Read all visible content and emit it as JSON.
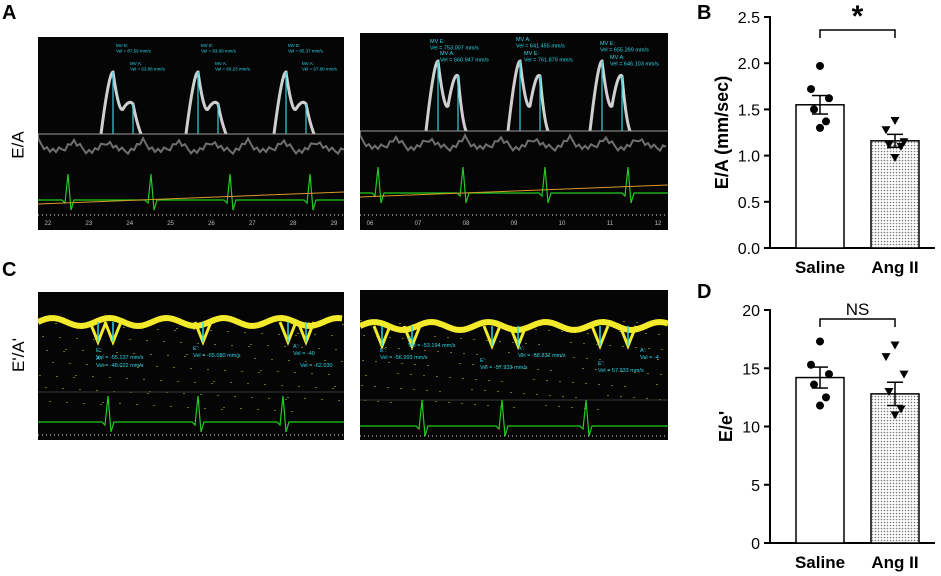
{
  "panels": {
    "a": {
      "letter": "A",
      "row_label": "E/A",
      "left_measure_labels": [
        {
          "l1": "MV E:",
          "l2": "Vel = 87.59 mm/s"
        },
        {
          "l1": "MV A:",
          "l2": "Vel = 63.88 mm/s"
        },
        {
          "l1": "MV E:",
          "l2": "Vel = 83.69 mm/s"
        },
        {
          "l1": "MV A:",
          "l2": "Vel = 60.23 mm/s"
        },
        {
          "l1": "MV E:",
          "l2": "Vel = 85.37 mm/s"
        },
        {
          "l1": "MV A:",
          "l2": "Vel = 67.80 mm/s"
        }
      ],
      "right_measure_labels": [
        {
          "l1": "MV E:",
          "l2": "Vel = 753.007 mm/s"
        },
        {
          "l1": "MV A:",
          "l2": "Vel = 641.455 mm/s"
        },
        {
          "l1": "MV E:",
          "l2": "Vel = 655.399 mm/s"
        },
        {
          "l1": "MV A:",
          "l2": "Vel = 660.947 mm/s"
        },
        {
          "l1": "MV E:",
          "l2": "Vel = 761.879 mm/s"
        },
        {
          "l1": "MV A:",
          "l2": "Vel = 646.103 mm/s"
        }
      ],
      "left_time_ticks": [
        "22",
        "23",
        "24",
        "25",
        "26",
        "27",
        "28",
        "29"
      ],
      "right_time_ticks": [
        "06",
        "07",
        "08",
        "09",
        "10",
        "11",
        "12"
      ]
    },
    "c": {
      "letter": "C",
      "row_label": "E'/A'",
      "left_measure_labels": [
        {
          "l1": "E':",
          "l2": "Vel = -55.137 mm/s"
        },
        {
          "l1": "A':",
          "l2": "Vel = -48.022 mm/s"
        },
        {
          "l1": "E':",
          "l2": "Vel = -65.080 mm/s"
        },
        {
          "l1": "A':",
          "l2": "Vel = -40"
        },
        {
          "l1": "",
          "l2": "Vel = -62.030"
        }
      ],
      "right_measure_labels": [
        {
          "l1": "A':",
          "l2": "Vel = -53.194 mm/s"
        },
        {
          "l1": "E':",
          "l2": "Vel = -56.993 mm/s"
        },
        {
          "l1": "A':",
          "l2": "Vel = -58.832 mm/s"
        },
        {
          "l1": "E':",
          "l2": "Vel = -57.933 mm/s"
        },
        {
          "l1": "E':",
          "l2": "Vel = 57.933 mm/s"
        },
        {
          "l1": "A':",
          "l2": "Vel = -4"
        }
      ]
    },
    "b": {
      "letter": "B"
    },
    "d": {
      "letter": "D"
    }
  },
  "colors": {
    "saline_fill": "#ffffff",
    "angii_fill": "#dcdcdc",
    "axis": "#000000",
    "doppler_gray": "#cfcfcf",
    "doppler_yellow": "#f2ea2a",
    "ecg_green": "#1fcf1f",
    "cursor_cyan": "#2bd6e6",
    "baseline_orange": "#d89a2a"
  },
  "chart_data": [
    {
      "id": "B",
      "type": "bar",
      "categories": [
        "Saline",
        "Ang II"
      ],
      "values": [
        1.55,
        1.16
      ],
      "sem": [
        0.1,
        0.07
      ],
      "points": [
        [
          1.97,
          1.72,
          1.62,
          1.5,
          1.37,
          1.3
        ],
        [
          1.38,
          1.28,
          1.15,
          1.12,
          1.1,
          0.98
        ]
      ],
      "point_markers": [
        "circle",
        "triangle-down"
      ],
      "ylabel": "E/A (mm/sec)",
      "ylim": [
        0,
        2.5
      ],
      "yticks": [
        "0.0",
        "0.5",
        "1.0",
        "1.5",
        "2.0",
        "2.5"
      ],
      "ytick_values": [
        0,
        0.5,
        1.0,
        1.5,
        2.0,
        2.5
      ],
      "annotation": "*",
      "grid": false
    },
    {
      "id": "D",
      "type": "bar",
      "categories": [
        "Saline",
        "Ang II"
      ],
      "values": [
        14.2,
        12.8
      ],
      "sem": [
        0.9,
        1.0
      ],
      "points": [
        [
          17.3,
          15.3,
          14.5,
          13.6,
          12.5,
          11.8
        ],
        [
          17.0,
          16.0,
          14.5,
          13.0,
          11.5,
          11.0
        ]
      ],
      "point_markers": [
        "circle",
        "triangle-down"
      ],
      "ylabel": "E/e'",
      "ylim": [
        0,
        20
      ],
      "yticks": [
        "0",
        "5",
        "10",
        "15",
        "20"
      ],
      "ytick_values": [
        0,
        5,
        10,
        15,
        20
      ],
      "annotation": "NS",
      "grid": false
    }
  ]
}
